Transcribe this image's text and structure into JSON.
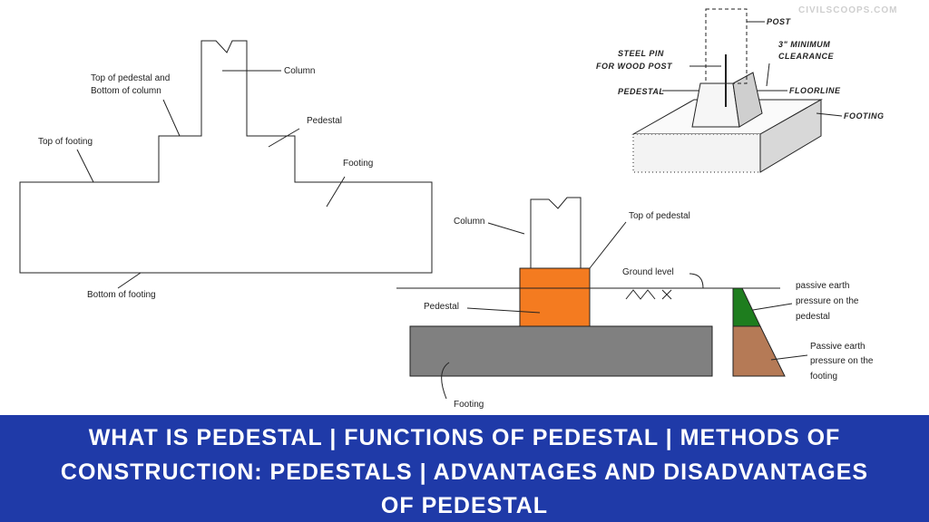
{
  "watermark": "CIVILSCOOPS.COM",
  "left_diagram": {
    "column": "Column",
    "top_of_pedestal": [
      "Top of pedestal and",
      "Bottom of column"
    ],
    "pedestal": "Pedestal",
    "top_of_footing": "Top of footing",
    "footing": "Footing",
    "bottom_of_footing": "Bottom of footing"
  },
  "top_right_diagram": {
    "post": "POST",
    "steel_pin": [
      "STEEL PIN",
      "FOR WOOD POST"
    ],
    "clearance": [
      "3\" MINIMUM",
      "CLEARANCE"
    ],
    "pedestal": "PEDESTAL",
    "floorline": "FLOORLINE",
    "footing": "FOOTING"
  },
  "bottom_diagram": {
    "column": "Column",
    "top_of_pedestal": "Top of pedestal",
    "ground_level": "Ground level",
    "pedestal": "Pedestal",
    "footing": "Footing",
    "pressure_pedestal": [
      "passive earth",
      "pressure on the",
      "pedestal"
    ],
    "pressure_footing": [
      "Passive earth",
      "pressure on the",
      "footing"
    ]
  },
  "banner": {
    "lines": [
      "WHAT IS PEDESTAL | FUNCTIONS OF PEDESTAL | METHODS OF",
      "CONSTRUCTION: PEDESTALS | ADVANTAGES AND DISADVANTAGES",
      "OF PEDESTAL"
    ]
  }
}
